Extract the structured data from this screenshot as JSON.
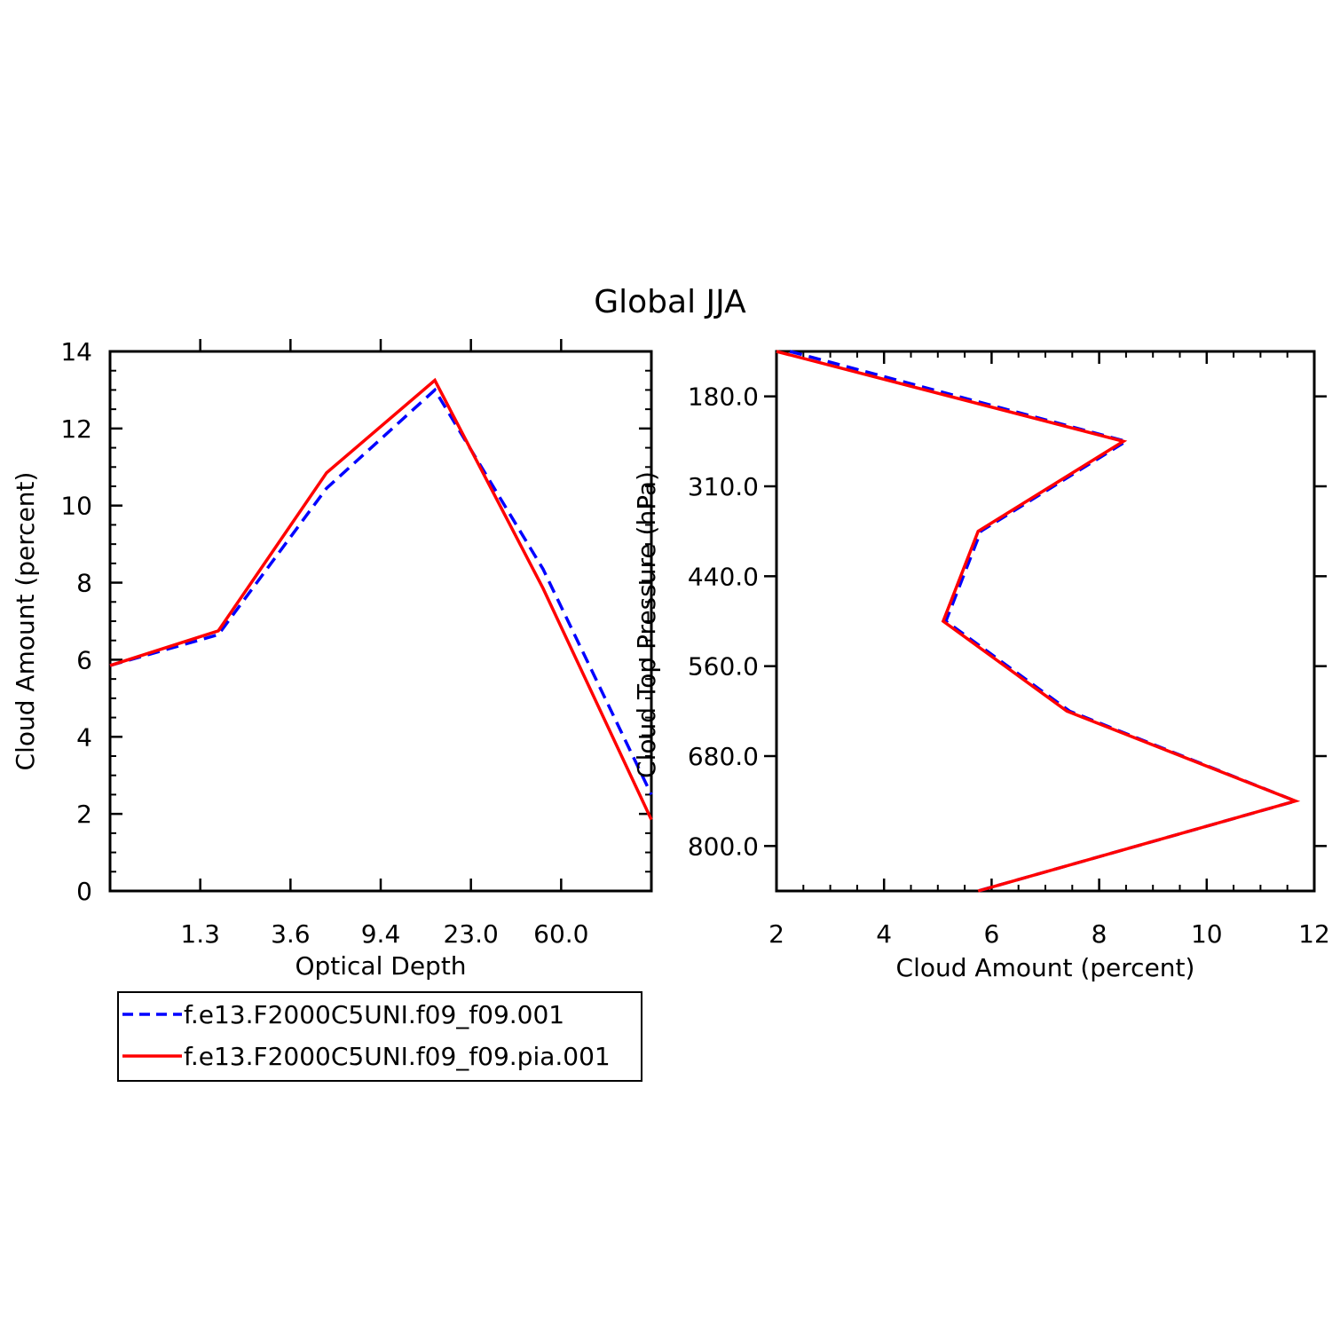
{
  "figure_title": "Global JJA",
  "colors": {
    "series1": "#0000ff",
    "series2": "#ff0000",
    "axis": "#000000"
  },
  "chart_data": [
    {
      "type": "line",
      "title": "",
      "xlabel": "Optical Depth",
      "ylabel": "Cloud Amount (percent)",
      "x_tick_labels": [
        "1.3",
        "3.6",
        "9.4",
        "23.0",
        "60.0"
      ],
      "y_ticks": [
        0,
        2,
        4,
        6,
        8,
        10,
        12,
        14
      ],
      "ylim": [
        0,
        14
      ],
      "x_bins": 6,
      "series": [
        {
          "name": "f.e13.F2000C5UNI.f09_f09.001",
          "style": "dashed",
          "values": [
            5.85,
            6.65,
            10.45,
            13.0,
            8.35,
            2.5
          ]
        },
        {
          "name": "f.e13.F2000C5UNI.f09_f09.pia.001",
          "style": "solid",
          "values": [
            5.85,
            6.75,
            10.85,
            13.25,
            7.85,
            1.85
          ]
        }
      ],
      "legend": "below"
    },
    {
      "type": "line",
      "title": "",
      "xlabel": "Cloud Amount (percent)",
      "ylabel": "Cloud Top Pressure (hPa)",
      "x_ticks": [
        2,
        4,
        6,
        8,
        10,
        12
      ],
      "xlim": [
        2,
        12
      ],
      "y_tick_labels": [
        "180.0",
        "310.0",
        "440.0",
        "560.0",
        "680.0",
        "800.0"
      ],
      "y_bins": 6,
      "series": [
        {
          "name": "f.e13.F2000C5UNI.f09_f09.001",
          "style": "dashed",
          "values": [
            2.25,
            8.5,
            5.8,
            5.15,
            7.45,
            11.65,
            5.75
          ]
        },
        {
          "name": "f.e13.F2000C5UNI.f09_f09.pia.001",
          "style": "solid",
          "values": [
            2.0,
            8.45,
            5.75,
            5.1,
            7.4,
            11.65,
            5.75
          ]
        }
      ]
    }
  ]
}
